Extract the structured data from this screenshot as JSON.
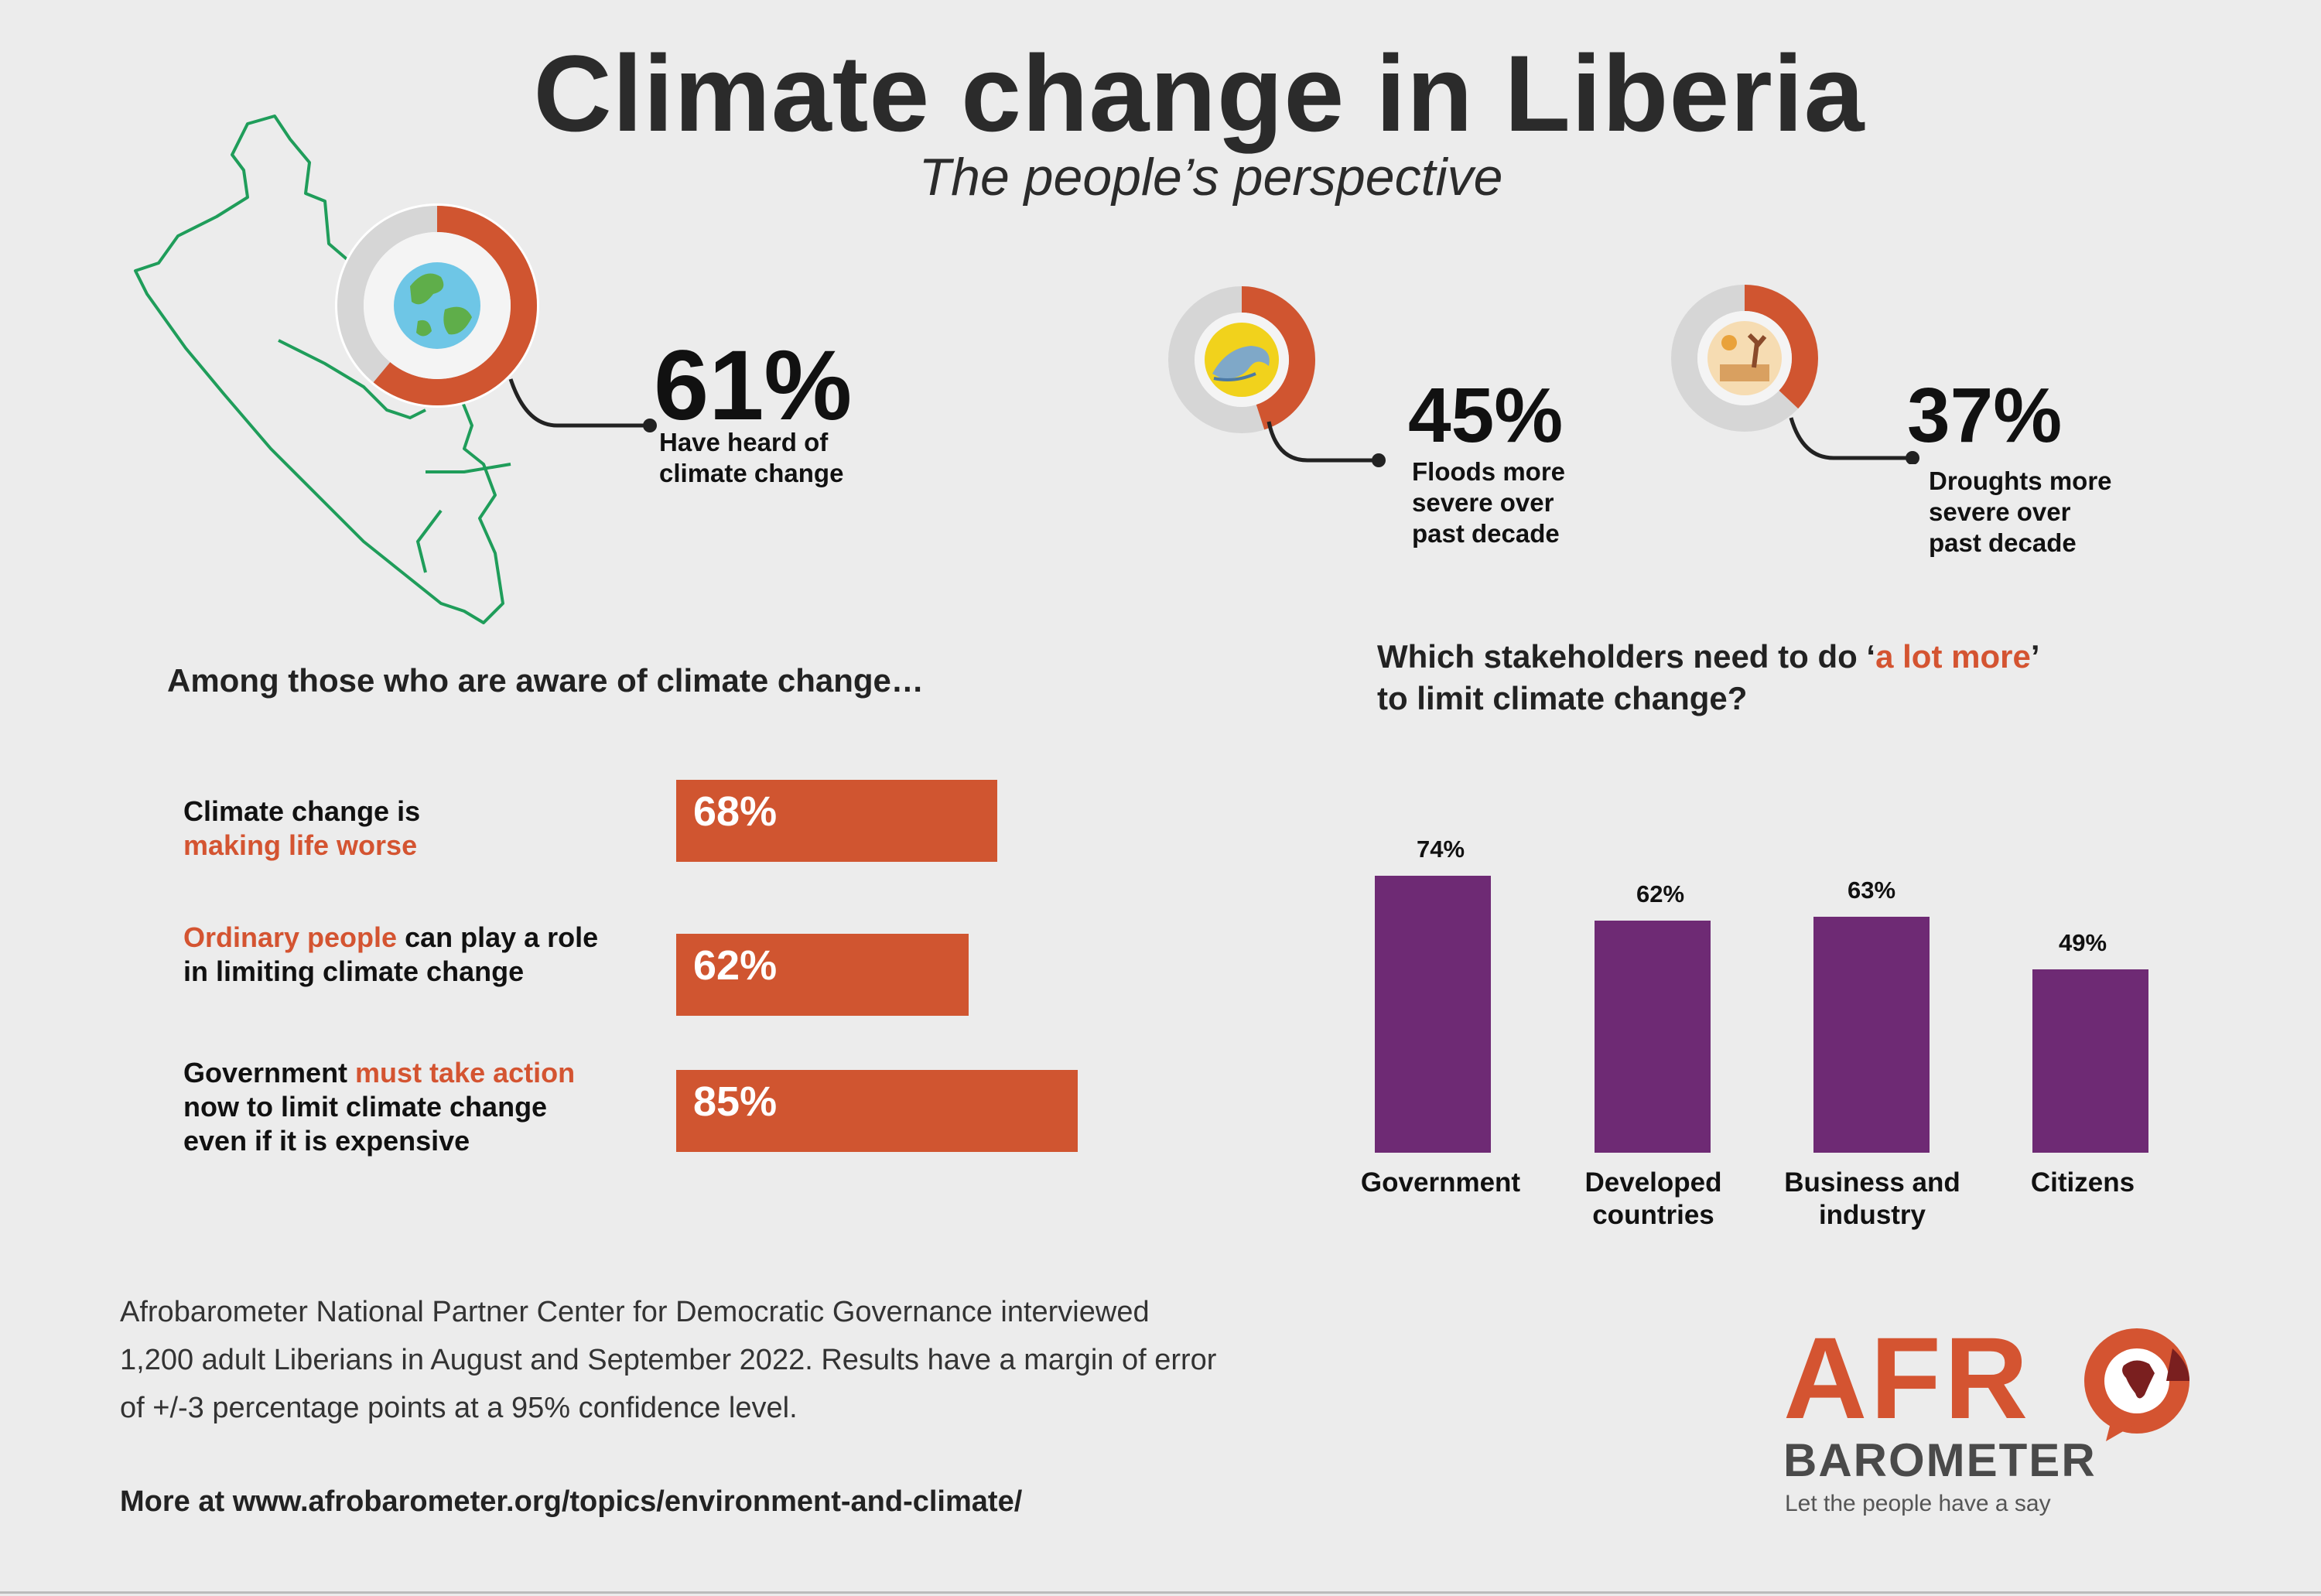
{
  "header": {
    "title": "Climate change in Liberia",
    "subtitle": "The people’s perspective"
  },
  "stats": {
    "heard": {
      "value": 61,
      "pct_text": "61%",
      "caption_line1": "Have heard of",
      "caption_line2": "climate change",
      "icon": "globe-icon"
    },
    "floods": {
      "value": 45,
      "pct_text": "45%",
      "caption_line1": "Floods more",
      "caption_line2": "severe over",
      "caption_line3": "past decade",
      "icon": "wave-icon"
    },
    "droughts": {
      "value": 37,
      "pct_text": "37%",
      "caption_line1": "Droughts more",
      "caption_line2": "severe over",
      "caption_line3": "past decade",
      "icon": "drought-icon"
    }
  },
  "aware": {
    "heading": "Among those who are aware of climate change…",
    "items": [
      {
        "label_a": "Climate change is",
        "label_b": "making life worse",
        "pct_text": "68%"
      },
      {
        "label_a": "Ordinary people",
        "label_b": " can play a role",
        "label_c": "in limiting climate change",
        "pct_text": "62%"
      },
      {
        "label_a": "Government ",
        "label_b": "must take action",
        "label_c": "now to limit climate change",
        "label_d": "even if it is expensive",
        "pct_text": "85%"
      }
    ]
  },
  "stakeholders": {
    "heading_a": "Which stakeholders need to do ‘",
    "heading_accent": "a lot more",
    "heading_b": "’",
    "heading_line2": "to limit climate change?"
  },
  "chart_data": [
    {
      "type": "bar",
      "orientation": "horizontal",
      "categories": [
        "Climate change is making life worse",
        "Ordinary people can play a role in limiting climate change",
        "Government must take action now to limit climate change even if it is expensive"
      ],
      "values": [
        68,
        62,
        85
      ],
      "value_labels": [
        "68%",
        "62%",
        "85%"
      ],
      "title": "Among those who are aware of climate change…",
      "xlim": [
        0,
        100
      ],
      "grid": false
    },
    {
      "type": "bar",
      "categories": [
        "Government",
        "Developed countries",
        "Business and industry",
        "Citizens"
      ],
      "category_lines": [
        [
          "Government"
        ],
        [
          "Developed",
          "countries"
        ],
        [
          "Business and",
          "industry"
        ],
        [
          "Citizens"
        ]
      ],
      "values": [
        74,
        62,
        63,
        49
      ],
      "value_labels": [
        "74%",
        "62%",
        "63%",
        "49%"
      ],
      "title": "Which stakeholders need to do ‘a lot more’ to limit climate change?",
      "ylim": [
        0,
        80
      ],
      "grid": false
    }
  ],
  "footer": {
    "line1": "Afrobarometer National Partner Center for Democratic Governance interviewed",
    "line2": "1,200 adult Liberians  in August and September 2022. Results have a margin of error",
    "line3": "of +/-3 percentage points at a 95% confidence level.",
    "link": "More at www.afrobarometer.org/topics/environment-and-climate/"
  },
  "logo": {
    "word_top": "AFR",
    "word_bottom": "BAROMETER",
    "tagline": "Let the people have a say"
  },
  "colors": {
    "accent": "#d45431",
    "purple": "#6e2a74",
    "map_green": "#1f9d5a",
    "ring_grey": "#d6d6d6"
  }
}
